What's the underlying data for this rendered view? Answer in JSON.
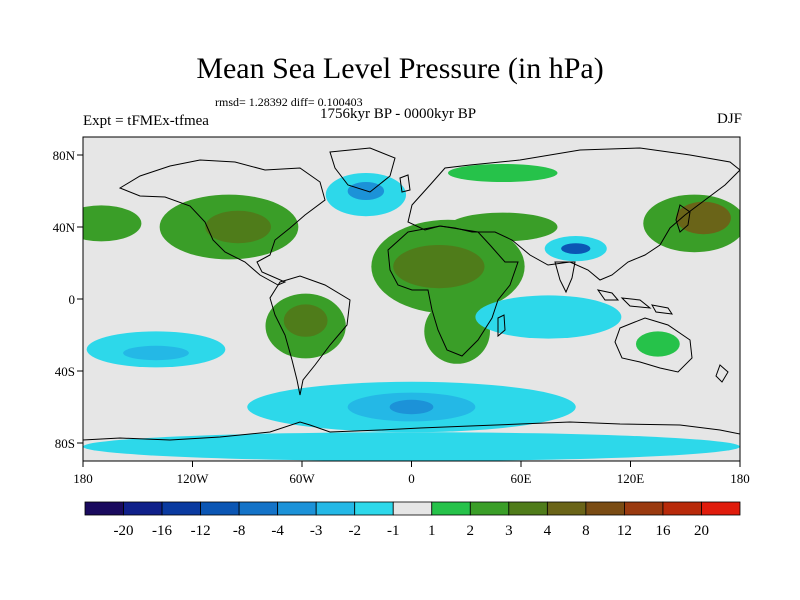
{
  "title": "Mean Sea Level Pressure (in hPa)",
  "stats_text": "rmsd= 1.28392 diff= 0.100403",
  "period_text": "1756kyr BP - 0000kyr BP",
  "experiment_text": "Expt = tFMEx-tfmea",
  "season_text": "DJF",
  "map": {
    "projection": "equirectangular",
    "lon_range": [
      -180,
      180
    ],
    "lat_range": [
      -90,
      90
    ],
    "lat_ticks": [
      {
        "value": 80,
        "label": "80N"
      },
      {
        "value": 40,
        "label": "40N"
      },
      {
        "value": 0,
        "label": "0"
      },
      {
        "value": -40,
        "label": "40S"
      },
      {
        "value": -80,
        "label": "80S"
      }
    ],
    "lon_ticks": [
      {
        "value": -180,
        "label": "180"
      },
      {
        "value": -120,
        "label": "120W"
      },
      {
        "value": -60,
        "label": "60W"
      },
      {
        "value": 0,
        "label": "0"
      },
      {
        "value": 60,
        "label": "60E"
      },
      {
        "value": 120,
        "label": "120E"
      },
      {
        "value": 180,
        "label": "180"
      }
    ]
  },
  "colorbar": {
    "colors": [
      "#1a0a5e",
      "#10208a",
      "#0a3aa0",
      "#0b56b4",
      "#1473c8",
      "#1c92d8",
      "#24b8e6",
      "#2dd8ea",
      "#e6e6e6",
      "#26c24a",
      "#3a9e28",
      "#4f7c1a",
      "#6a6418",
      "#7a4c14",
      "#9a3a10",
      "#b82a0a",
      "#e01c0c"
    ],
    "labels": [
      "-20",
      "-16",
      "-12",
      "-8",
      "-4",
      "-3",
      "-2",
      "-1",
      "1",
      "2",
      "3",
      "4",
      "8",
      "12",
      "16",
      "20"
    ]
  },
  "anomaly_regions": [
    {
      "name": "N Pacific high",
      "lon": -170,
      "lat": 42,
      "rx": 22,
      "ry": 10,
      "level": 10
    },
    {
      "name": "N America",
      "lon": -100,
      "lat": 40,
      "rx": 38,
      "ry": 18,
      "level": 10
    },
    {
      "name": "N America core",
      "lon": -95,
      "lat": 40,
      "rx": 18,
      "ry": 9,
      "level": 11
    },
    {
      "name": "N Atlantic low",
      "lon": -25,
      "lat": 58,
      "rx": 22,
      "ry": 12,
      "level": 7
    },
    {
      "name": "N Atlantic low core",
      "lon": -25,
      "lat": 60,
      "rx": 10,
      "ry": 5,
      "level": 5
    },
    {
      "name": "Africa",
      "lon": 20,
      "lat": 18,
      "rx": 42,
      "ry": 26,
      "level": 10
    },
    {
      "name": "Africa core",
      "lon": 15,
      "lat": 18,
      "rx": 25,
      "ry": 12,
      "level": 11
    },
    {
      "name": "Arabia",
      "lon": 50,
      "lat": 40,
      "rx": 30,
      "ry": 8,
      "level": 10
    },
    {
      "name": "South Africa",
      "lon": 25,
      "lat": -18,
      "rx": 18,
      "ry": 18,
      "level": 10
    },
    {
      "name": "South America",
      "lon": -58,
      "lat": -15,
      "rx": 22,
      "ry": 18,
      "level": 10
    },
    {
      "name": "South America core",
      "lon": -58,
      "lat": -12,
      "rx": 12,
      "ry": 9,
      "level": 11
    },
    {
      "name": "NW Pacific",
      "lon": 155,
      "lat": 42,
      "rx": 28,
      "ry": 16,
      "level": 10
    },
    {
      "name": "NW Pacific core",
      "lon": 160,
      "lat": 45,
      "rx": 15,
      "ry": 9,
      "level": 12
    },
    {
      "name": "Arctic band",
      "lon": 50,
      "lat": 70,
      "rx": 30,
      "ry": 5,
      "level": 9
    },
    {
      "name": "Australia",
      "lon": 135,
      "lat": -25,
      "rx": 12,
      "ry": 7,
      "level": 9
    },
    {
      "name": "Tibet low",
      "lon": 90,
      "lat": 28,
      "rx": 17,
      "ry": 7,
      "level": 7
    },
    {
      "name": "Tibet low core",
      "lon": 90,
      "lat": 28,
      "rx": 8,
      "ry": 3,
      "level": 3
    },
    {
      "name": "Indian Ocean",
      "lon": 75,
      "lat": -10,
      "rx": 40,
      "ry": 12,
      "level": 7
    },
    {
      "name": "S Pacific",
      "lon": -140,
      "lat": -28,
      "rx": 38,
      "ry": 10,
      "level": 7
    },
    {
      "name": "S Pacific core",
      "lon": -140,
      "lat": -30,
      "rx": 18,
      "ry": 4,
      "level": 6
    },
    {
      "name": "Southern Ocean",
      "lon": 0,
      "lat": -60,
      "rx": 90,
      "ry": 14,
      "level": 7
    },
    {
      "name": "Southern Ocean mid",
      "lon": 0,
      "lat": -60,
      "rx": 35,
      "ry": 8,
      "level": 6
    },
    {
      "name": "Southern Ocean core",
      "lon": 0,
      "lat": -60,
      "rx": 12,
      "ry": 4,
      "level": 5
    },
    {
      "name": "Antarctic band",
      "lon": 0,
      "lat": -82,
      "rx": 180,
      "ry": 8,
      "level": 7
    }
  ]
}
